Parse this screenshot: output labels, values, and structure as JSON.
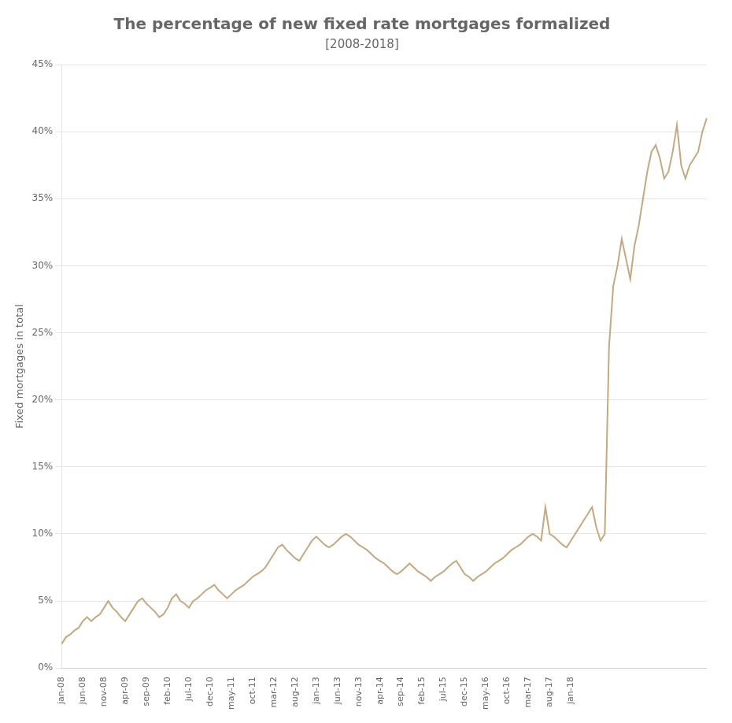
{
  "chart_data": {
    "type": "line",
    "title": "The percentage of new fixed rate mortgages formalized",
    "subtitle": "[2008-2018]",
    "ylabel": "Fixed mortgages in total",
    "color": "#C4A882",
    "grid": true,
    "categories": [
      "jan-08",
      null,
      null,
      null,
      null,
      "jun-08",
      null,
      null,
      null,
      null,
      "nov-08",
      null,
      null,
      null,
      null,
      "apr-09",
      null,
      null,
      null,
      null,
      "sep-09",
      null,
      null,
      null,
      null,
      "feb-10",
      null,
      null,
      null,
      null,
      "jul-10",
      null,
      null,
      null,
      null,
      "dec-10",
      null,
      null,
      null,
      null,
      "may-11",
      null,
      null,
      null,
      null,
      "oct-11",
      null,
      null,
      null,
      null,
      "mar-12",
      null,
      null,
      null,
      null,
      "aug-12",
      null,
      null,
      null,
      null,
      "jan-13",
      null,
      null,
      null,
      null,
      "jun-13",
      null,
      null,
      null,
      null,
      "nov-13",
      null,
      null,
      null,
      null,
      "apr-14",
      null,
      null,
      null,
      null,
      "sep-14",
      null,
      null,
      null,
      null,
      "feb-15",
      null,
      null,
      null,
      null,
      "jul-15",
      null,
      null,
      null,
      null,
      "dec-15",
      null,
      null,
      null,
      null,
      "may-16",
      null,
      null,
      null,
      null,
      "oct-16",
      null,
      null,
      null,
      null,
      "mar-17",
      null,
      null,
      null,
      null,
      "aug-17",
      null,
      null,
      null,
      null,
      "jan-18",
      null,
      null,
      null,
      null,
      null,
      null,
      null,
      null,
      null,
      null,
      null,
      null,
      null,
      null,
      null,
      null,
      null,
      null,
      null,
      null,
      null,
      null,
      null,
      null,
      null,
      null,
      null,
      null,
      null,
      null,
      null,
      null
    ],
    "values": [
      1.8,
      2.3,
      2.5,
      2.8,
      3.0,
      3.5,
      3.8,
      3.5,
      3.8,
      4.0,
      4.5,
      5.0,
      4.5,
      4.2,
      3.8,
      3.5,
      4.0,
      4.5,
      5.0,
      5.2,
      4.8,
      4.5,
      4.2,
      3.8,
      4.0,
      4.5,
      5.2,
      5.5,
      5.0,
      4.8,
      4.5,
      5.0,
      5.2,
      5.5,
      5.8,
      6.0,
      6.2,
      5.8,
      5.5,
      5.2,
      5.5,
      5.8,
      6.0,
      6.2,
      6.5,
      6.8,
      7.0,
      7.2,
      7.5,
      8.0,
      8.5,
      9.0,
      9.2,
      8.8,
      8.5,
      8.2,
      8.0,
      8.5,
      9.0,
      9.5,
      9.8,
      9.5,
      9.2,
      9.0,
      9.2,
      9.5,
      9.8,
      10.0,
      9.8,
      9.5,
      9.2,
      9.0,
      8.8,
      8.5,
      8.2,
      8.0,
      7.8,
      7.5,
      7.2,
      7.0,
      7.2,
      7.5,
      7.8,
      7.5,
      7.2,
      7.0,
      6.8,
      6.5,
      6.8,
      7.0,
      7.2,
      7.5,
      7.8,
      8.0,
      7.5,
      7.0,
      6.8,
      6.5,
      6.8,
      7.0,
      7.2,
      7.5,
      7.8,
      8.0,
      8.2,
      8.5,
      8.8,
      9.0,
      9.2,
      9.5,
      9.8,
      10.0,
      9.8,
      9.5,
      12.0,
      10.0,
      9.8,
      9.5,
      9.2,
      9.0,
      9.5,
      10.0,
      10.5,
      11.0,
      11.5,
      12.0,
      10.5,
      9.5,
      10.0,
      24.0,
      28.5,
      30.0,
      32.0,
      30.5,
      29.0,
      31.5,
      33.0,
      35.0,
      37.0,
      38.5,
      39.0,
      38.0,
      36.5,
      37.0,
      38.5,
      40.5,
      37.5,
      36.5,
      37.5,
      38.0,
      38.5,
      40.0,
      41.0
    ],
    "ylim": [
      0,
      45
    ],
    "yticks": [
      {
        "value": 0,
        "label": "0%"
      },
      {
        "value": 5,
        "label": "5%"
      },
      {
        "value": 10,
        "label": "10%"
      },
      {
        "value": 15,
        "label": "15%"
      },
      {
        "value": 20,
        "label": "20%"
      },
      {
        "value": 25,
        "label": "25%"
      },
      {
        "value": 30,
        "label": "30%"
      },
      {
        "value": 35,
        "label": "35%"
      },
      {
        "value": 40,
        "label": "40%"
      },
      {
        "value": 45,
        "label": "45%"
      }
    ]
  }
}
